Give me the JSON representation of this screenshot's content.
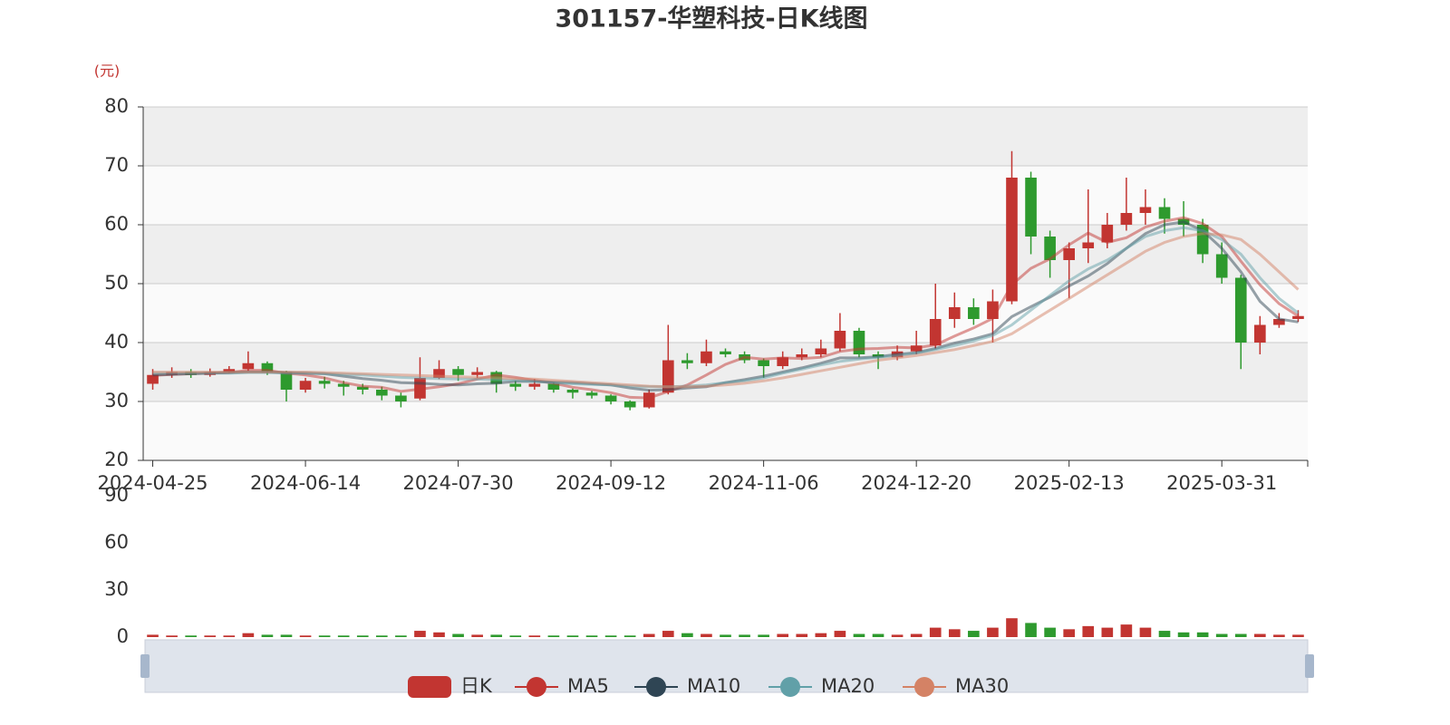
{
  "chart_data": {
    "type": "candlestick",
    "title": "301157-华塑科技-日K线图",
    "y_unit": "(元)",
    "up_color": "#c23531",
    "down_color": "#2e9a2e",
    "categories": [
      "2024-04-25",
      null,
      null,
      null,
      null,
      null,
      null,
      null,
      "2024-06-14",
      null,
      null,
      null,
      null,
      null,
      null,
      null,
      "2024-07-30",
      null,
      null,
      null,
      null,
      null,
      null,
      null,
      "2024-09-12",
      null,
      null,
      null,
      null,
      null,
      null,
      null,
      "2024-11-06",
      null,
      null,
      null,
      null,
      null,
      null,
      null,
      "2024-12-20",
      null,
      null,
      null,
      null,
      null,
      null,
      null,
      "2025-02-13",
      null,
      null,
      null,
      null,
      null,
      null,
      null,
      "2025-03-31",
      null,
      null,
      null,
      null
    ],
    "ylim": [
      20,
      80
    ],
    "yticks": [
      20,
      30,
      40,
      50,
      60,
      70,
      80
    ],
    "split_area": true,
    "series": [
      {
        "name": "日K",
        "values": [
          [
            33,
            34.5,
            32,
            35.5
          ],
          [
            34.5,
            35,
            34,
            35.8
          ],
          [
            35,
            34.5,
            34,
            35.5
          ],
          [
            34.5,
            35,
            34.2,
            35.6
          ],
          [
            35,
            35.5,
            34.8,
            36
          ],
          [
            35.5,
            36.5,
            35.2,
            38.5
          ],
          [
            36.5,
            35,
            34.5,
            36.8
          ],
          [
            35,
            32,
            30,
            35.2
          ],
          [
            32,
            33.5,
            31.5,
            34
          ],
          [
            33.5,
            33,
            32.2,
            34.2
          ],
          [
            33,
            32.5,
            31,
            33.5
          ],
          [
            32.5,
            32,
            31.2,
            33
          ],
          [
            32,
            31,
            30.2,
            32.5
          ],
          [
            31,
            30,
            29,
            31.5
          ],
          [
            30.5,
            34,
            30.2,
            37.5
          ],
          [
            34,
            35.5,
            33.8,
            37
          ],
          [
            35.5,
            34.5,
            33.5,
            36
          ],
          [
            34.5,
            35,
            34,
            35.8
          ],
          [
            35,
            33,
            31.5,
            35.2
          ],
          [
            33,
            32.5,
            31.8,
            33.5
          ],
          [
            32.5,
            33,
            32,
            33.8
          ],
          [
            33,
            32,
            31.5,
            33.2
          ],
          [
            32,
            31.5,
            30.5,
            32.2
          ],
          [
            31.5,
            31,
            30.5,
            31.8
          ],
          [
            31,
            30,
            29.5,
            31.2
          ],
          [
            30,
            29,
            28.5,
            30.2
          ],
          [
            29,
            31.5,
            28.8,
            32
          ],
          [
            31.5,
            37,
            31.2,
            43
          ],
          [
            37,
            36.5,
            35.5,
            38.2
          ],
          [
            36.5,
            38.5,
            36,
            40.5
          ],
          [
            38.5,
            38,
            37.5,
            39
          ],
          [
            38,
            37,
            36.5,
            38.5
          ],
          [
            37,
            36,
            34,
            37.3
          ],
          [
            36,
            37.5,
            35.5,
            38.5
          ],
          [
            37.5,
            38,
            37,
            39
          ],
          [
            38,
            39,
            37.5,
            40.5
          ],
          [
            39,
            42,
            38.5,
            45
          ],
          [
            42,
            38,
            37.5,
            42.5
          ],
          [
            38,
            37.5,
            35.5,
            38.5
          ],
          [
            37.5,
            38.5,
            37,
            39.5
          ],
          [
            38.5,
            39.5,
            38,
            42
          ],
          [
            39.5,
            44,
            39,
            50
          ],
          [
            44,
            46,
            42.5,
            48.5
          ],
          [
            46,
            44,
            43,
            47.5
          ],
          [
            44,
            47,
            40,
            49
          ],
          [
            47,
            68,
            46.5,
            72.5
          ],
          [
            68,
            58,
            55,
            69
          ],
          [
            58,
            54,
            51,
            59
          ],
          [
            54,
            56,
            47.5,
            57
          ],
          [
            56,
            57,
            53.5,
            66
          ],
          [
            57,
            60,
            56,
            62
          ],
          [
            60,
            62,
            59,
            68
          ],
          [
            62,
            63,
            60,
            66
          ],
          [
            63,
            61,
            58.5,
            64.5
          ],
          [
            61,
            60,
            58,
            64
          ],
          [
            60,
            55,
            53.5,
            61
          ],
          [
            55,
            51,
            50,
            57
          ],
          [
            51,
            40,
            35.5,
            51.5
          ],
          [
            40,
            43,
            38,
            44.5
          ],
          [
            43,
            44,
            42.5,
            45
          ],
          [
            44,
            44.5,
            43.5,
            45.5
          ]
        ]
      },
      {
        "name": "MA5",
        "color": "#c23531",
        "values": [
          34.4,
          34.6,
          34.7,
          34.8,
          34.9,
          35.3,
          35.3,
          34.8,
          34.5,
          34,
          33.2,
          32.6,
          32.4,
          31.7,
          32.1,
          32.5,
          33,
          33.8,
          34.5,
          34.1,
          33.6,
          33.1,
          32.4,
          32,
          31.5,
          30.7,
          30.6,
          31.7,
          32.8,
          34.5,
          36.3,
          37.5,
          37.2,
          37.4,
          37.3,
          37.5,
          38.5,
          38.9,
          39,
          39.2,
          39.1,
          39.6,
          41.1,
          42.5,
          44.1,
          49.8,
          52.6,
          54.2,
          56.6,
          58.6,
          57,
          57.8,
          59.6,
          60.6,
          61.2,
          60.2,
          58,
          53.8,
          49.8,
          46.6,
          44.5
        ]
      },
      {
        "name": "MA10",
        "color": "#2f4554",
        "values": [
          34.5,
          34.6,
          34.7,
          34.8,
          34.9,
          35,
          35,
          34.9,
          34.8,
          34.7,
          34.3,
          33.9,
          33.6,
          33.2,
          33.1,
          32.9,
          32.8,
          33,
          33.1,
          33.4,
          33.4,
          33.3,
          33.2,
          33,
          32.8,
          32.3,
          31.9,
          32,
          32.3,
          32.5,
          33.2,
          33.7,
          34.3,
          35,
          35.7,
          36.5,
          37.4,
          37.4,
          37.6,
          38,
          38.3,
          39,
          39.9,
          40.6,
          41.5,
          44.4,
          46.1,
          47.7,
          49.6,
          51.3,
          53.4,
          56,
          58.5,
          60,
          60.5,
          59,
          56,
          52,
          47,
          44,
          43.5
        ]
      },
      {
        "name": "MA20",
        "color": "#61a0a8",
        "values": [
          34.8,
          34.8,
          34.8,
          34.8,
          34.8,
          34.9,
          34.9,
          34.8,
          34.8,
          34.7,
          34.6,
          34.5,
          34.3,
          34.1,
          34,
          33.9,
          33.8,
          33.8,
          33.7,
          33.6,
          33.4,
          33.2,
          33,
          32.9,
          32.8,
          32.6,
          32.5,
          32.5,
          32.6,
          32.8,
          33.2,
          33.5,
          34,
          34.8,
          35.5,
          36.2,
          36.8,
          37.2,
          37.5,
          37.8,
          38.2,
          38.8,
          39.5,
          40.3,
          41.2,
          43,
          45.5,
          48,
          50.5,
          52.5,
          54,
          56,
          58,
          59,
          59.5,
          59,
          57.5,
          55,
          51,
          47.5,
          45
        ]
      },
      {
        "name": "MA30",
        "color": "#d48265",
        "values": [
          35,
          35,
          35,
          35,
          35,
          35,
          35,
          35,
          35,
          34.9,
          34.8,
          34.7,
          34.6,
          34.5,
          34.4,
          34.3,
          34.2,
          34.1,
          34,
          33.9,
          33.8,
          33.6,
          33.4,
          33.2,
          33,
          32.8,
          32.6,
          32.5,
          32.5,
          32.6,
          32.8,
          33.1,
          33.5,
          34,
          34.6,
          35.2,
          35.8,
          36.4,
          37,
          37.4,
          37.8,
          38.3,
          38.8,
          39.5,
          40.2,
          41.5,
          43.5,
          45.5,
          47.5,
          49.5,
          51.5,
          53.5,
          55.5,
          57,
          58,
          58.5,
          58.3,
          57.5,
          55,
          52,
          49
        ]
      }
    ],
    "volume": {
      "ylim": [
        0,
        90
      ],
      "yticks": [
        0,
        30,
        60,
        90
      ],
      "values": [
        1.5,
        1,
        1,
        1,
        1,
        2.5,
        1.5,
        1.5,
        1,
        1,
        1,
        1,
        1,
        1,
        4,
        3,
        2,
        1.5,
        1.5,
        1,
        1,
        1,
        1,
        1,
        1,
        1,
        2,
        4,
        2.5,
        2,
        1.5,
        1.5,
        1.5,
        2,
        2,
        2.5,
        4,
        2,
        2,
        1.5,
        2,
        6,
        5,
        4,
        6,
        12,
        9,
        6,
        5,
        7,
        6,
        8,
        6,
        4,
        3,
        3,
        2,
        2,
        2,
        1.5,
        1.5
      ]
    }
  }
}
